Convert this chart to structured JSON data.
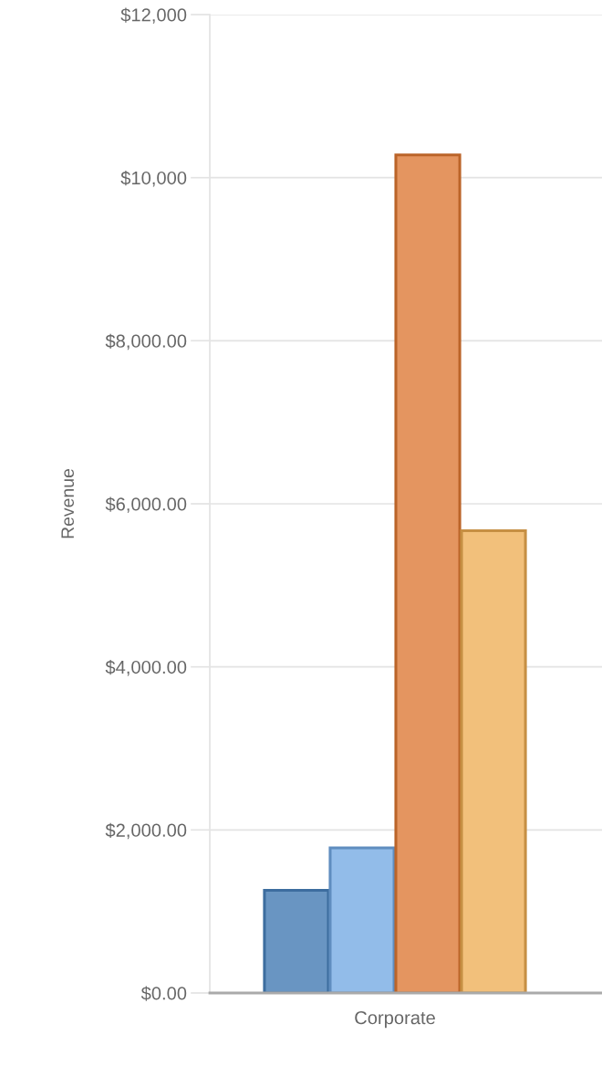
{
  "chart_data": {
    "type": "bar",
    "ylabel": "Revenue",
    "categories": [
      "Corporate"
    ],
    "series": [
      {
        "color": "#6995c2",
        "values": [
          1260
        ]
      },
      {
        "color": "#92bce9",
        "values": [
          1780
        ]
      },
      {
        "color": "#e49560",
        "values": [
          10280
        ]
      },
      {
        "color": "#f2c07b",
        "values": [
          5670
        ]
      }
    ],
    "ylim": [
      0,
      12000
    ],
    "yticks": [
      {
        "value": 0,
        "label": "$0.00"
      },
      {
        "value": 2000,
        "label": "$2,000.00"
      },
      {
        "value": 4000,
        "label": "$4,000.00"
      },
      {
        "value": 6000,
        "label": "$6,000.00"
      },
      {
        "value": 8000,
        "label": "$8,000.00"
      },
      {
        "value": 10000,
        "label": "$10,000"
      },
      {
        "value": 12000,
        "label": "$12,000"
      }
    ],
    "grid": "y"
  }
}
